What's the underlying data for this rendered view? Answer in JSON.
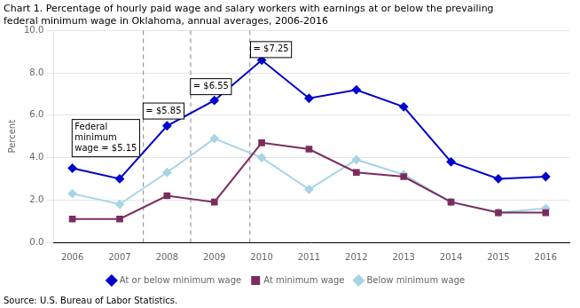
{
  "chart_data": {
    "type": "line",
    "title": [
      "Chart 1. Percentage of hourly paid wage and salary workers with earnings at or below the prevailing",
      "federal minimum wage in Oklahoma, annual averages, 2006-2016"
    ],
    "ylabel": "Percent",
    "source": "Source: U.S. Bureau of Labor Statistics.",
    "x": [
      2006,
      2007,
      2008,
      2009,
      2010,
      2011,
      2012,
      2013,
      2014,
      2015,
      2016
    ],
    "series": [
      {
        "name": "At or below minimum wage",
        "color": "#0000cc",
        "marker": "diamond",
        "values": [
          3.5,
          3.0,
          5.5,
          6.7,
          8.6,
          6.8,
          7.2,
          6.4,
          3.8,
          3.0,
          3.1
        ]
      },
      {
        "name": "At minimum wage",
        "color": "#7B2D5E",
        "marker": "square",
        "values": [
          1.1,
          1.1,
          2.2,
          1.9,
          4.7,
          4.4,
          3.3,
          3.1,
          1.9,
          1.4,
          1.4
        ]
      },
      {
        "name": "Below minimum wage",
        "color": "#a8d4e6",
        "marker": "diamond",
        "values": [
          2.3,
          1.8,
          3.3,
          4.9,
          4.0,
          2.5,
          3.9,
          3.2,
          1.9,
          1.4,
          1.6
        ]
      }
    ],
    "xlim": [
      2005.6,
      2016.5
    ],
    "xticks": [
      2006,
      2007,
      2008,
      2009,
      2010,
      2011,
      2012,
      2013,
      2014,
      2015,
      2016
    ],
    "ylim": [
      0.0,
      10.0
    ],
    "yticks": [
      {
        "value": 0.0,
        "label": "0.0"
      },
      {
        "value": 2.0,
        "label": "2.0"
      },
      {
        "value": 4.0,
        "label": "4.0"
      },
      {
        "value": 6.0,
        "label": "6.0"
      },
      {
        "value": 8.0,
        "label": "8.0"
      },
      {
        "value": 10.0,
        "label": "10.0"
      }
    ],
    "grid": "y",
    "legend": "bottom",
    "vlines": [
      2007.5,
      2008.5,
      2009.75
    ],
    "annotations": [
      {
        "text": "= $5.85",
        "x": 2007.55,
        "y": 6.2
      },
      {
        "text": "= $6.55",
        "x": 2008.55,
        "y": 7.35
      },
      {
        "text": "= $7.25",
        "x": 2009.82,
        "y": 9.1
      },
      {
        "text": "Federal\nminimum\nwage = $5.15",
        "x": 2006.05,
        "y": 5.8
      }
    ]
  }
}
